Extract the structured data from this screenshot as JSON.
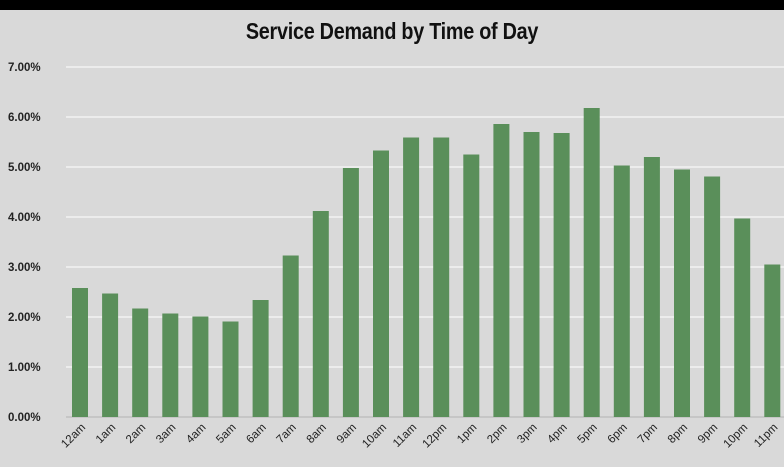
{
  "chart_data": {
    "type": "bar",
    "title": "Service Demand by Time of Day",
    "xlabel": "",
    "ylabel": "",
    "ylim": [
      0,
      0.07
    ],
    "yticks": [
      {
        "value": 0.0,
        "label": "0.00%"
      },
      {
        "value": 0.01,
        "label": "1.00%"
      },
      {
        "value": 0.02,
        "label": "2.00%"
      },
      {
        "value": 0.03,
        "label": "3.00%"
      },
      {
        "value": 0.04,
        "label": "4.00%"
      },
      {
        "value": 0.05,
        "label": "5.00%"
      },
      {
        "value": 0.06,
        "label": "6.00%"
      },
      {
        "value": 0.07,
        "label": "7.00%"
      }
    ],
    "categories": [
      "12am",
      "1am",
      "2am",
      "3am",
      "4am",
      "5am",
      "6am",
      "7am",
      "8am",
      "9am",
      "10am",
      "11am",
      "12pm",
      "1pm",
      "2pm",
      "3pm",
      "4pm",
      "5pm",
      "6pm",
      "7pm",
      "8pm",
      "9pm",
      "10pm",
      "11pm"
    ],
    "values": [
      0.0258,
      0.0247,
      0.0217,
      0.0207,
      0.0201,
      0.0191,
      0.0234,
      0.0323,
      0.0412,
      0.0498,
      0.0533,
      0.0559,
      0.0559,
      0.0525,
      0.0586,
      0.057,
      0.0568,
      0.0618,
      0.0503,
      0.052,
      0.0495,
      0.0481,
      0.0397,
      0.0305
    ],
    "grid": true,
    "legend": "none",
    "colors": {
      "bar": "#5a8f5a",
      "background": "#d9d9d9",
      "frame": "#000000",
      "grid": "#f2f2f2"
    }
  }
}
